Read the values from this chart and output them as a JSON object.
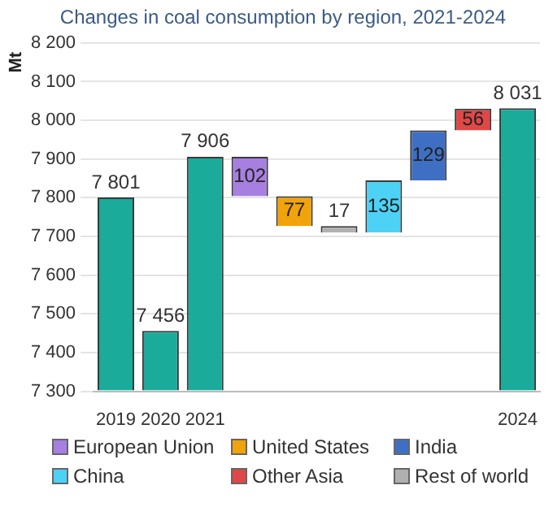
{
  "chart_data": {
    "type": "bar",
    "title": "Changes in coal consumption by region, 2021-2024",
    "ylabel": "Mt",
    "categories": [
      "2019",
      "2020",
      "2021",
      null,
      null,
      null,
      null,
      null,
      null,
      "2024"
    ],
    "series": [
      {
        "color": "#1aab9b",
        "values": [
          7801,
          7456,
          7906,
          null,
          null,
          null,
          null,
          null,
          null,
          8031
        ],
        "value_labels": [
          "7 801",
          "7 456",
          "7 906",
          null,
          null,
          null,
          null,
          null,
          null,
          "8 031"
        ]
      },
      {
        "name": "European Union",
        "color": "#a77fe0",
        "values": [
          null,
          null,
          null,
          -102,
          null,
          null,
          null,
          null,
          null,
          null
        ],
        "base": [
          null,
          null,
          null,
          7906,
          null,
          null,
          null,
          null,
          null,
          null
        ],
        "value_labels": [
          null,
          null,
          null,
          "102",
          null,
          null,
          null,
          null,
          null,
          null
        ]
      },
      {
        "name": "United States",
        "color": "#f0a30a",
        "values": [
          null,
          null,
          null,
          null,
          -77,
          null,
          null,
          null,
          null,
          null
        ],
        "base": [
          null,
          null,
          null,
          null,
          7804,
          null,
          null,
          null,
          null,
          null
        ],
        "value_labels": [
          null,
          null,
          null,
          null,
          "77",
          null,
          null,
          null,
          null,
          null
        ]
      },
      {
        "name": "India",
        "color": "#3f6fc4",
        "values": [
          null,
          null,
          null,
          null,
          null,
          null,
          null,
          129,
          null,
          null
        ],
        "base": [
          null,
          null,
          null,
          null,
          null,
          null,
          null,
          7845,
          null,
          null
        ],
        "value_labels": [
          null,
          null,
          null,
          null,
          null,
          null,
          null,
          "129",
          null,
          null
        ]
      },
      {
        "name": "China",
        "color": "#4dd2f5",
        "values": [
          null,
          null,
          null,
          null,
          null,
          null,
          135,
          null,
          null,
          null
        ],
        "base": [
          null,
          null,
          null,
          null,
          null,
          null,
          7710,
          null,
          null,
          null
        ],
        "value_labels": [
          null,
          null,
          null,
          null,
          null,
          null,
          "135",
          null,
          null,
          null
        ]
      },
      {
        "name": "Other Asia",
        "color": "#e04848",
        "values": [
          null,
          null,
          null,
          null,
          null,
          null,
          null,
          null,
          56,
          null
        ],
        "base": [
          null,
          null,
          null,
          null,
          null,
          null,
          null,
          null,
          7974,
          null
        ],
        "value_labels": [
          null,
          null,
          null,
          null,
          null,
          null,
          null,
          null,
          "56",
          null
        ]
      },
      {
        "name": "Rest of world",
        "color": "#b0b0b0",
        "values": [
          null,
          null,
          null,
          null,
          null,
          -17,
          null,
          null,
          null,
          null
        ],
        "base": [
          null,
          null,
          null,
          null,
          null,
          7727,
          null,
          null,
          null,
          null
        ],
        "value_labels": [
          null,
          null,
          null,
          null,
          null,
          "17",
          null,
          null,
          null,
          null
        ]
      }
    ],
    "ylim": [
      7300,
      8200
    ],
    "yticks": [
      {
        "value": 7300,
        "label": "7 300"
      },
      {
        "value": 7400,
        "label": "7 400"
      },
      {
        "value": 7500,
        "label": "7 500"
      },
      {
        "value": 7600,
        "label": "7 600"
      },
      {
        "value": 7700,
        "label": "7 700"
      },
      {
        "value": 7800,
        "label": "7 800"
      },
      {
        "value": 7900,
        "label": "7 900"
      },
      {
        "value": 8000,
        "label": "8 000"
      },
      {
        "value": 8100,
        "label": "8 100"
      },
      {
        "value": 8200,
        "label": "8 200"
      }
    ],
    "grid": "y",
    "legend": "bottom"
  }
}
